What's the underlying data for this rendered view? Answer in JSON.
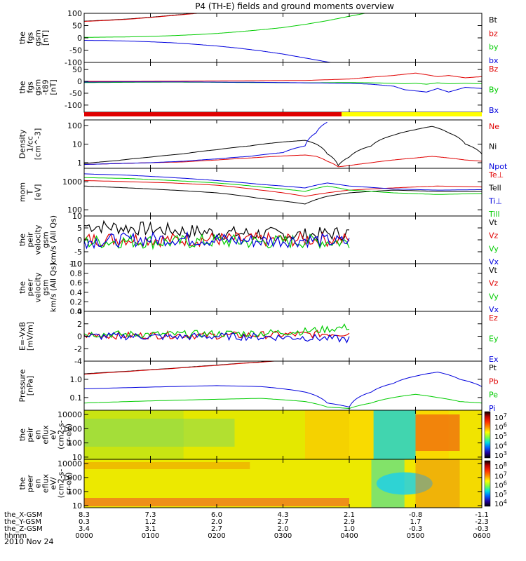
{
  "title": "P4 (TH-E) fields and ground moments overview",
  "colors": {
    "black": "#000000",
    "red": "#e00000",
    "green": "#00cc00",
    "blue": "#0000dd",
    "yellow": "#ffff00"
  },
  "chart_data": [
    {
      "type": "line",
      "panel": "fgs",
      "ylabel": [
        "the",
        "fgs",
        "gsm",
        "[nT]"
      ],
      "ylim": [
        -100,
        100
      ],
      "yticks": [
        "100",
        "50",
        "0",
        "-50",
        "-100"
      ],
      "x": [
        0,
        20,
        40,
        60,
        80,
        100,
        120,
        140,
        160,
        180,
        200,
        220,
        240,
        260,
        270,
        290,
        310,
        320,
        330,
        340,
        345,
        360
      ],
      "series": [
        {
          "name": "Bt",
          "color": "black",
          "values": [
            68,
            72,
            77,
            84,
            92,
            100,
            110,
            null,
            null,
            null,
            null,
            null,
            null,
            null,
            null,
            null,
            null,
            null,
            null,
            null,
            null,
            null
          ]
        },
        {
          "name": "bz",
          "color": "red",
          "values": [
            67,
            71,
            76,
            83,
            91,
            99,
            109,
            null,
            null,
            null,
            null,
            null,
            null,
            null,
            null,
            null,
            null,
            null,
            null,
            null,
            null,
            null
          ]
        },
        {
          "name": "by",
          "color": "green",
          "values": [
            2,
            3,
            4,
            6,
            9,
            13,
            18,
            25,
            33,
            42,
            55,
            70,
            88,
            105,
            null,
            null,
            null,
            null,
            null,
            null,
            null,
            null
          ]
        },
        {
          "name": "bx",
          "color": "blue",
          "values": [
            -10,
            -11,
            -13,
            -16,
            -20,
            -26,
            -33,
            -42,
            -53,
            -66,
            -82,
            -98,
            -110,
            null,
            null,
            null,
            null,
            null,
            null,
            null,
            null,
            null
          ]
        }
      ],
      "legend": [
        "Bt",
        "bz",
        "by",
        "bx"
      ]
    },
    {
      "type": "line",
      "panel": "fgs-dsl",
      "ylabel": [
        "the",
        "fgs",
        "gsm",
        "-t89",
        "[nT]"
      ],
      "ylim": [
        -130,
        80
      ],
      "yticks": [
        "50",
        "0",
        "-50",
        "-100"
      ],
      "x": [
        0,
        40,
        80,
        120,
        160,
        200,
        240,
        260,
        280,
        290,
        300,
        310,
        320,
        330,
        345,
        360
      ],
      "series": [
        {
          "name": "Bz",
          "color": "red",
          "values": [
            0,
            0,
            1,
            2,
            3,
            4,
            10,
            18,
            25,
            30,
            35,
            28,
            20,
            25,
            15,
            20
          ]
        },
        {
          "name": "By",
          "color": "green",
          "values": [
            -5,
            -4,
            -3,
            -4,
            -5,
            -6,
            -5,
            -6,
            -8,
            -10,
            -8,
            -12,
            -6,
            -10,
            -8,
            -10
          ]
        },
        {
          "name": "Bx",
          "color": "blue",
          "values": [
            -3,
            -2,
            -2,
            -3,
            -4,
            -6,
            -8,
            -12,
            -20,
            -35,
            -40,
            -45,
            -30,
            -45,
            -25,
            -30
          ]
        }
      ],
      "legend": [
        "Bz",
        "By",
        "Bx"
      ]
    },
    {
      "type": "line",
      "panel": "density",
      "ylabel": [
        "Density",
        "1/cc",
        "[cm^-3]"
      ],
      "scale": "log",
      "ylim": [
        0.5,
        200
      ],
      "yticks": [
        "100",
        "10",
        "1"
      ],
      "x": [
        0,
        30,
        60,
        90,
        120,
        150,
        180,
        200,
        210,
        220,
        230,
        240,
        260,
        280,
        300,
        315,
        330,
        345,
        360
      ],
      "series": [
        {
          "name": "Ne",
          "color": "red",
          "values": [
            0.8,
            0.9,
            1.0,
            1.1,
            1.4,
            1.8,
            2.3,
            2.6,
            2.2,
            1.2,
            0.6,
            0.7,
            1.0,
            1.4,
            1.8,
            2.2,
            1.8,
            1.4,
            1.2
          ]
        },
        {
          "name": "Ni",
          "color": "black",
          "values": [
            0.9,
            1.3,
            2.0,
            3.0,
            5.0,
            8.0,
            13,
            16,
            10,
            3.0,
            0.7,
            2.0,
            8.0,
            30,
            60,
            90,
            40,
            10,
            3.0
          ]
        },
        {
          "name": "Npot",
          "color": "blue",
          "values": [
            0.8,
            0.9,
            1.0,
            1.2,
            1.6,
            2.2,
            3.5,
            8,
            40,
            150,
            null,
            null,
            null,
            null,
            null,
            null,
            null,
            null,
            null
          ]
        }
      ],
      "legend": [
        "Ne",
        "Ni",
        "Npot"
      ]
    },
    {
      "type": "line",
      "panel": "temperature",
      "ylabel": [
        "mom",
        "T",
        "[eV]"
      ],
      "scale": "log",
      "ylim": [
        60,
        3000
      ],
      "yticks": [
        "1000",
        "100"
      ],
      "x": [
        0,
        40,
        80,
        120,
        160,
        200,
        220,
        240,
        280,
        320,
        360
      ],
      "series": [
        {
          "name": "Te⊥",
          "color": "red",
          "values": [
            1100,
            1000,
            900,
            750,
            500,
            300,
            400,
            500,
            600,
            700,
            650
          ]
        },
        {
          "name": "Tell",
          "color": "black",
          "values": [
            700,
            600,
            500,
            400,
            250,
            160,
            300,
            400,
            500,
            450,
            450
          ]
        },
        {
          "name": "Ti⊥",
          "color": "blue",
          "values": [
            1900,
            1700,
            1400,
            1100,
            800,
            600,
            900,
            700,
            550,
            500,
            520
          ]
        },
        {
          "name": "Till",
          "color": "green",
          "values": [
            1400,
            1300,
            1100,
            900,
            650,
            450,
            700,
            500,
            400,
            350,
            380
          ]
        }
      ],
      "legend": [
        "Te⊥",
        "Tell",
        "Ti⊥",
        "Till"
      ]
    },
    {
      "type": "line",
      "panel": "velocity",
      "ylabel": [
        "the",
        "peir",
        "velocity",
        "gsm",
        "km/s (All Qs)"
      ],
      "ylim": [
        -10,
        10
      ],
      "yticks": [
        "10",
        "5",
        "0",
        "-5",
        "-10"
      ],
      "x": [
        0,
        40,
        80,
        120,
        160,
        200,
        240
      ],
      "series": [
        {
          "name": "Vt",
          "color": "black",
          "values": [
            6,
            5,
            4,
            3,
            2.5,
            2,
            3
          ]
        },
        {
          "name": "Vz",
          "color": "red",
          "values": [
            0,
            0.5,
            0,
            0.3,
            0,
            0.2,
            0
          ]
        },
        {
          "name": "Vy",
          "color": "green",
          "values": [
            -1,
            -0.5,
            -1,
            -0.5,
            -1,
            -0.5,
            -1
          ]
        },
        {
          "name": "Vx",
          "color": "blue",
          "values": [
            -0.5,
            0,
            0.5,
            0,
            -0.5,
            0,
            -1
          ]
        }
      ],
      "legend": [
        "Vt",
        "Vz",
        "Vy",
        "Vx"
      ]
    },
    {
      "type": "line",
      "panel": "velocity-e",
      "ylabel": [
        "the",
        "peer",
        "velocity",
        "gsm",
        "km/s (All Qs)"
      ],
      "ylim": [
        0,
        1
      ],
      "yticks": [
        "1.0",
        "0.8",
        "0.6",
        "0.4",
        "0.2",
        "0.0"
      ],
      "x": [],
      "series": [],
      "legend": [
        "Vt",
        "Vz",
        "Vy",
        "Vx"
      ]
    },
    {
      "type": "line",
      "panel": "efield",
      "ylabel": [
        "E=-VxB",
        "[mV/m]"
      ],
      "ylim": [
        -4,
        4
      ],
      "yticks": [
        "4",
        "2",
        "0",
        "-2",
        "-4"
      ],
      "x": [
        0,
        40,
        80,
        120,
        160,
        200,
        240
      ],
      "series": [
        {
          "name": "Ez",
          "color": "red",
          "values": [
            0.2,
            0.1,
            0.2,
            0.1,
            0.2,
            0.3,
            0.5
          ]
        },
        {
          "name": "Ey",
          "color": "green",
          "values": [
            0.4,
            0.3,
            0.3,
            0.4,
            0.5,
            0.8,
            1.5
          ]
        },
        {
          "name": "Ex",
          "color": "blue",
          "values": [
            0,
            0,
            -0.1,
            0,
            -0.1,
            -0.2,
            -0.5
          ]
        }
      ],
      "legend": [
        "Ez",
        "Ey",
        "Ex"
      ]
    },
    {
      "type": "line",
      "panel": "pressure",
      "ylabel": [
        "Pressure",
        "[nPa]"
      ],
      "scale": "log",
      "ylim": [
        0.02,
        10
      ],
      "yticks": [
        "1.0",
        "0.1"
      ],
      "x": [
        0,
        40,
        80,
        120,
        160,
        200,
        220,
        240,
        260,
        280,
        300,
        320,
        340,
        360
      ],
      "series": [
        {
          "name": "Pt",
          "color": "black",
          "values": [
            2.0,
            2.8,
            4.0,
            6.0,
            9.0,
            13,
            null,
            null,
            null,
            null,
            null,
            null,
            null,
            null
          ]
        },
        {
          "name": "Pb",
          "color": "red",
          "values": [
            1.9,
            2.7,
            3.9,
            5.8,
            8.8,
            12.8,
            null,
            null,
            null,
            null,
            null,
            null,
            null,
            null
          ]
        },
        {
          "name": "Pe",
          "color": "green",
          "values": [
            0.05,
            0.06,
            0.07,
            0.08,
            0.09,
            0.06,
            0.03,
            0.025,
            0.05,
            0.1,
            0.15,
            0.1,
            0.06,
            0.05
          ]
        },
        {
          "name": "Pi",
          "color": "blue",
          "values": [
            0.3,
            0.35,
            0.4,
            0.45,
            0.4,
            0.2,
            0.05,
            0.03,
            0.2,
            0.6,
            1.5,
            2.5,
            1.0,
            0.4
          ]
        }
      ],
      "legend": [
        "Pt",
        "Pb",
        "Pe",
        "Pi"
      ]
    },
    {
      "type": "heatmap",
      "panel": "ion-spectrogram",
      "ylabel": [
        "the",
        "peir",
        "en",
        "eflux",
        "eV",
        "(cm2-s-",
        "sr-eV)"
      ],
      "scale": "log",
      "ylim": [
        7,
        20000
      ],
      "yticks": [
        "10000",
        "1000",
        "100",
        "10"
      ],
      "colorbar_ticks": [
        "10^7",
        "10^6",
        "10^5",
        "10^4",
        "10^3"
      ]
    },
    {
      "type": "heatmap",
      "panel": "electron-spectrogram",
      "ylabel": [
        "the",
        "peer",
        "en",
        "eflux",
        "eV/",
        "(cm2-s-",
        "sr-eV)"
      ],
      "scale": "log",
      "ylim": [
        7,
        20000
      ],
      "yticks": [
        "10000",
        "1000",
        "100",
        "10"
      ],
      "colorbar_ticks": [
        "10^8",
        "10^7",
        "10^6",
        "10^5",
        "10^4"
      ]
    }
  ],
  "ephemeris": {
    "rows": [
      {
        "label": "the_X-GSM",
        "values": [
          "8.3",
          "7.3",
          "6.0",
          "4.3",
          "2.1",
          "-0.8",
          "-1.1"
        ]
      },
      {
        "label": "the_Y-GSM",
        "values": [
          "0.3",
          "1.2",
          "2.0",
          "2.7",
          "2.9",
          "1.7",
          "-2.3"
        ]
      },
      {
        "label": "the_Z-GSM",
        "values": [
          "3.4",
          "3.1",
          "2.7",
          "2.0",
          "1.0",
          "-0.3",
          "-0.3"
        ]
      },
      {
        "label": "hhmm",
        "values": [
          "0000",
          "0100",
          "0200",
          "0300",
          "0400",
          "0500",
          "0600"
        ]
      }
    ],
    "date": "2010 Nov 24"
  }
}
